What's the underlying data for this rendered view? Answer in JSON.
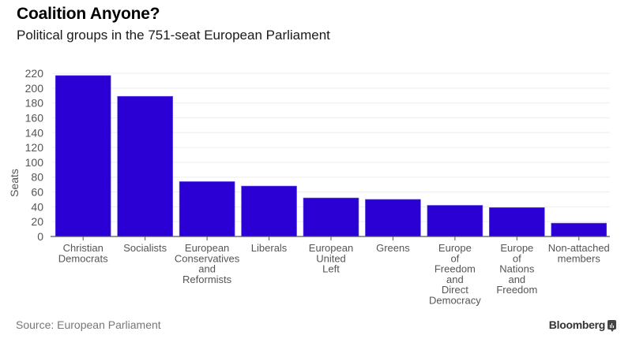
{
  "header": {
    "title": "Coalition Anyone?",
    "subtitle": "Political groups in the 751-seat European Parliament"
  },
  "footer": {
    "source": "Source: European Parliament",
    "brand": "Bloomberg",
    "brand_icon": "bloomberg-chart-icon"
  },
  "colors": {
    "bar": "#2a00d4",
    "gridline": "#eeeeee",
    "axis": "#555555"
  },
  "chart_data": {
    "type": "bar",
    "title": "Coalition Anyone?",
    "subtitle": "Political groups in the 751-seat European Parliament",
    "xlabel": "",
    "ylabel": "Seats",
    "ylim": [
      0,
      220
    ],
    "yticks": [
      0,
      20,
      40,
      60,
      80,
      100,
      120,
      140,
      160,
      180,
      200,
      220
    ],
    "grid": true,
    "legend": "none",
    "categories": [
      [
        "Christian",
        "Democrats"
      ],
      [
        "Socialists"
      ],
      [
        "European",
        "Conservatives",
        "and",
        "Reformists"
      ],
      [
        "Liberals"
      ],
      [
        "European",
        "United",
        "Left"
      ],
      [
        "Greens"
      ],
      [
        "Europe",
        "of",
        "Freedom",
        "and",
        "Direct",
        "Democracy"
      ],
      [
        "Europe",
        "of",
        "Nations",
        "and",
        "Freedom"
      ],
      [
        "Non-attached",
        "members"
      ]
    ],
    "values": [
      217,
      189,
      74,
      68,
      52,
      50,
      42,
      39,
      18
    ]
  }
}
